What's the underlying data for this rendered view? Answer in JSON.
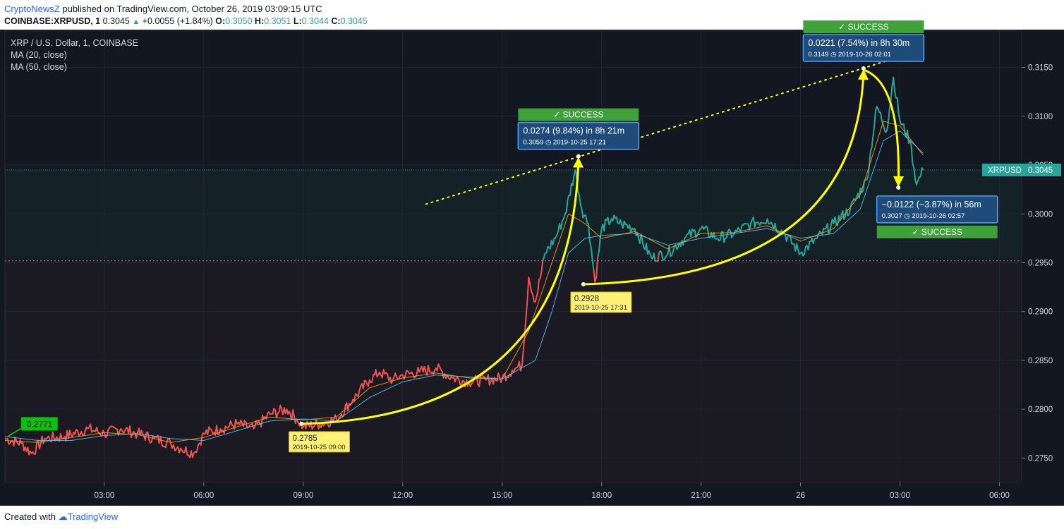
{
  "header": {
    "publisher": "CryptoNewsZ",
    "published_text": " published on TradingView.com, October 26, 2019 03:09:15 UTC",
    "symbol_line": "COINBASE:XRPUSD, 1",
    "last": "0.3045",
    "change": "+0.0055 (+1.84%)",
    "open_label": "O:",
    "open": "0.3050",
    "high_label": "H:",
    "high": "0.3051",
    "low_label": "L:",
    "low": "0.3044",
    "close_label": "C:",
    "close": "0.3045"
  },
  "legend": {
    "title": "XRP / U.S. Dollar, 1, COINBASE",
    "ma20": "MA (20, close)",
    "ma50": "MA (50, close)"
  },
  "footer": {
    "created_with": "Created with",
    "brand": "TradingView"
  },
  "colors": {
    "background": "#131722",
    "up": "#26a69a",
    "down": "#ef5350",
    "ma20": "#ff9800",
    "ma50": "#4fc3f7",
    "annotation": "#ffff00",
    "info_box": "#1e4b7a",
    "success": "#3ea13a"
  },
  "chart_data": {
    "type": "line",
    "title": "XRP / U.S. Dollar, 1, COINBASE",
    "xlabel": "",
    "ylabel": "",
    "ylim": [
      0.2725,
      0.3188
    ],
    "x_range_hours": [
      0,
      30.67
    ],
    "y_ticks": [
      "0.2750",
      "0.2800",
      "0.2850",
      "0.2900",
      "0.2950",
      "0.3000",
      "0.3050",
      "0.3100",
      "0.3150"
    ],
    "x_ticks": [
      {
        "t": 3,
        "label": "03:00"
      },
      {
        "t": 6,
        "label": "06:00"
      },
      {
        "t": 9,
        "label": "09:00"
      },
      {
        "t": 12,
        "label": "12:00"
      },
      {
        "t": 15,
        "label": "15:00"
      },
      {
        "t": 18,
        "label": "18:00"
      },
      {
        "t": 21,
        "label": "21:00"
      },
      {
        "t": 24,
        "label": "26"
      },
      {
        "t": 27,
        "label": "03:00"
      },
      {
        "t": 30,
        "label": "06:00"
      }
    ],
    "series": [
      {
        "name": "XRPUSD",
        "t": [
          0,
          0.5,
          0.8,
          1.2,
          1.8,
          2.5,
          3.0,
          3.5,
          4.0,
          4.5,
          5.0,
          5.3,
          5.7,
          6.0,
          6.5,
          7.0,
          7.5,
          8.0,
          8.5,
          8.8,
          9.0,
          9.5,
          10.0,
          10.5,
          11.0,
          11.3,
          11.7,
          12.0,
          12.5,
          13.0,
          13.5,
          14.0,
          14.5,
          15.0,
          15.3,
          15.6,
          15.8,
          16.0,
          16.3,
          16.6,
          16.9,
          17.2,
          17.4,
          17.6,
          17.8,
          18.0,
          18.3,
          18.6,
          19.0,
          19.5,
          20.0,
          20.5,
          21.0,
          21.5,
          22.0,
          22.5,
          23.0,
          23.5,
          24.0,
          24.5,
          25.0,
          25.5,
          26.0,
          26.3,
          26.6,
          26.8,
          27.0,
          27.3,
          27.5,
          27.7
        ],
        "values": [
          0.277,
          0.2765,
          0.2755,
          0.277,
          0.2772,
          0.278,
          0.2775,
          0.278,
          0.2775,
          0.277,
          0.2765,
          0.276,
          0.2755,
          0.2775,
          0.278,
          0.2785,
          0.278,
          0.2795,
          0.28,
          0.279,
          0.2782,
          0.2785,
          0.279,
          0.281,
          0.283,
          0.2838,
          0.283,
          0.2835,
          0.2838,
          0.2842,
          0.2832,
          0.2828,
          0.283,
          0.2832,
          0.284,
          0.2845,
          0.2935,
          0.291,
          0.296,
          0.2975,
          0.3,
          0.3045,
          0.3005,
          0.299,
          0.293,
          0.2985,
          0.2995,
          0.299,
          0.2985,
          0.2955,
          0.296,
          0.2975,
          0.2985,
          0.2975,
          0.298,
          0.299,
          0.2995,
          0.298,
          0.296,
          0.2975,
          0.299,
          0.3005,
          0.3035,
          0.311,
          0.3085,
          0.314,
          0.3095,
          0.3075,
          0.303,
          0.3045
        ]
      },
      {
        "name": "MA (20, close)",
        "t": [
          0,
          1,
          2,
          3,
          4,
          5,
          6,
          7,
          8,
          9,
          10,
          11,
          12,
          13,
          14,
          15,
          15.8,
          16.5,
          17.0,
          17.5,
          18.0,
          19.0,
          20.0,
          21.0,
          22.0,
          23.0,
          24.0,
          25.0,
          25.8,
          26.5,
          27.0,
          27.7
        ],
        "values": [
          0.2768,
          0.2766,
          0.2771,
          0.2776,
          0.2774,
          0.2766,
          0.2771,
          0.2782,
          0.2792,
          0.2789,
          0.2792,
          0.2822,
          0.2832,
          0.2837,
          0.2832,
          0.2831,
          0.288,
          0.295,
          0.3,
          0.299,
          0.2975,
          0.2982,
          0.2964,
          0.298,
          0.2981,
          0.2988,
          0.2972,
          0.2985,
          0.302,
          0.3095,
          0.309,
          0.306
        ]
      },
      {
        "name": "MA (50, close)",
        "t": [
          0,
          1,
          2,
          3,
          4,
          5,
          6,
          7,
          8,
          9,
          10,
          11,
          12,
          13,
          14,
          15,
          16.0,
          16.5,
          17.0,
          17.5,
          18.0,
          19.0,
          20.0,
          21.0,
          22.0,
          23.0,
          24.0,
          25.0,
          25.8,
          26.5,
          27.0,
          27.7
        ],
        "values": [
          0.2772,
          0.2768,
          0.2768,
          0.2773,
          0.2775,
          0.277,
          0.2768,
          0.2778,
          0.2788,
          0.279,
          0.2788,
          0.2812,
          0.2828,
          0.2835,
          0.2833,
          0.2831,
          0.285,
          0.29,
          0.296,
          0.2975,
          0.2978,
          0.298,
          0.2968,
          0.2975,
          0.298,
          0.2985,
          0.2975,
          0.298,
          0.3005,
          0.3075,
          0.3085,
          0.3062
        ]
      }
    ],
    "current_price": {
      "label": "XRPUSD",
      "value": "0.3045",
      "price": 0.3045
    },
    "reference_line": 0.2952,
    "annotations": [
      {
        "type": "start-marker",
        "t": 0.4,
        "price": 0.2771,
        "text": "0.2771"
      },
      {
        "type": "point-label",
        "t": 8.95,
        "price": 0.2785,
        "price_text": "0.2785",
        "date_text": "2019-10-25 09:00"
      },
      {
        "type": "point-label",
        "t": 17.45,
        "price": 0.2928,
        "price_text": "0.2928",
        "date_text": "2019-10-25 17:31"
      },
      {
        "type": "measure",
        "from_t": 8.95,
        "from_price": 0.2785,
        "to_t": 17.3,
        "to_price": 0.3059,
        "headline": "0.0274 (9.84%) in 8h 21m",
        "detail": "0.3059 ◷ 2019-10-25  17:21",
        "badge": "✓ SUCCESS",
        "badge_pos": "above"
      },
      {
        "type": "measure",
        "from_t": 17.45,
        "from_price": 0.2928,
        "to_t": 25.9,
        "to_price": 0.3149,
        "headline": "0.0221 (7.54%) in 8h 30m",
        "detail": "0.3149 ◷ 2019-10-26  02:01",
        "badge": "✓ SUCCESS",
        "badge_pos": "above"
      },
      {
        "type": "measure",
        "from_t": 25.9,
        "from_price": 0.3149,
        "to_t": 26.95,
        "to_price": 0.3027,
        "headline": "−0.0122 (−3.87%) in 56m",
        "detail": "0.3027 ◷ 2019-10-26  02:57",
        "badge": "✓ SUCCESS",
        "badge_pos": "below"
      }
    ],
    "trendline": {
      "from_t": 12.7,
      "from_price": 0.301,
      "to_t": 27.1,
      "to_price": 0.3162
    }
  }
}
